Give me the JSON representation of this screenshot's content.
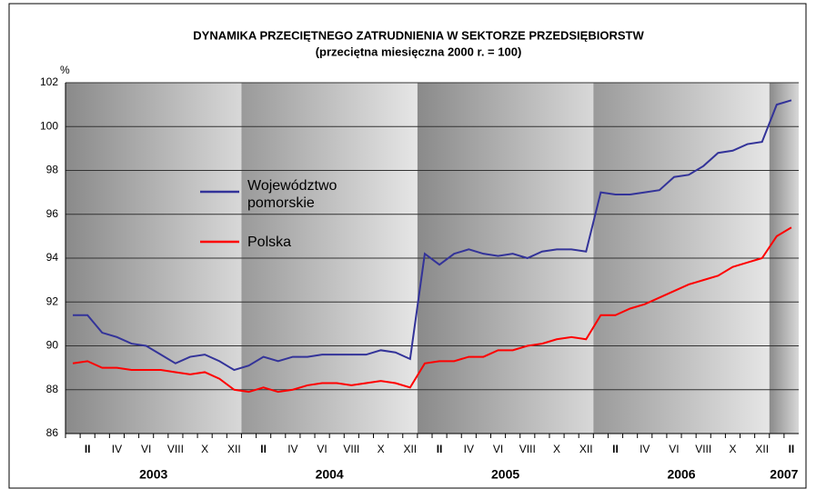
{
  "chart_data": {
    "type": "line",
    "title": "DYNAMIKA PRZECIĘTNEGO ZATRUDNIENIA W SEKTORZE PRZEDSIĘBIORSTW",
    "subtitle": "(przeciętna miesięczna 2000 r. = 100)",
    "y_label": "%",
    "categories": [
      null,
      "II",
      null,
      "IV",
      null,
      "VI",
      null,
      "VIII",
      null,
      "X",
      null,
      "XII",
      null,
      "II",
      null,
      "IV",
      null,
      "VI",
      null,
      "VIII",
      null,
      "X",
      null,
      "XII",
      null,
      "II",
      null,
      "IV",
      null,
      "VI",
      null,
      "VIII",
      null,
      "X",
      null,
      "XII",
      null,
      "II",
      null,
      "IV",
      null,
      "VI",
      null,
      "VIII",
      null,
      "X",
      null,
      "XII",
      null,
      "II"
    ],
    "years": [
      "2003",
      "2004",
      "2005",
      "2006",
      "2007"
    ],
    "series": [
      {
        "name": "Województwo pomorskie",
        "color": "#333399",
        "values": [
          91.4,
          91.4,
          90.6,
          90.4,
          90.1,
          90.0,
          89.6,
          89.2,
          89.5,
          89.6,
          89.3,
          88.9,
          89.1,
          89.5,
          89.3,
          89.5,
          89.5,
          89.6,
          89.6,
          89.6,
          89.6,
          89.8,
          89.7,
          89.4,
          94.2,
          93.7,
          94.2,
          94.4,
          94.2,
          94.1,
          94.2,
          94.0,
          94.3,
          94.4,
          94.4,
          94.3,
          97.0,
          96.9,
          96.9,
          97.0,
          97.1,
          97.7,
          97.8,
          98.2,
          98.8,
          98.9,
          99.2,
          99.3,
          101.0,
          101.2
        ]
      },
      {
        "name": "Polska",
        "color": "#ff0000",
        "values": [
          89.2,
          89.3,
          89.0,
          89.0,
          88.9,
          88.9,
          88.9,
          88.8,
          88.7,
          88.8,
          88.5,
          88.0,
          87.9,
          88.1,
          87.9,
          88.0,
          88.2,
          88.3,
          88.3,
          88.2,
          88.3,
          88.4,
          88.3,
          88.1,
          89.2,
          89.3,
          89.3,
          89.5,
          89.5,
          89.8,
          89.8,
          90.0,
          90.1,
          90.3,
          90.4,
          90.3,
          91.4,
          91.4,
          91.7,
          91.9,
          92.2,
          92.5,
          92.8,
          93.0,
          93.2,
          93.6,
          93.8,
          94.0,
          95.0,
          95.4
        ]
      }
    ],
    "ylim": [
      86,
      102
    ],
    "yticks": [
      86,
      88,
      90,
      92,
      94,
      96,
      98,
      100,
      102
    ],
    "grid": true
  }
}
